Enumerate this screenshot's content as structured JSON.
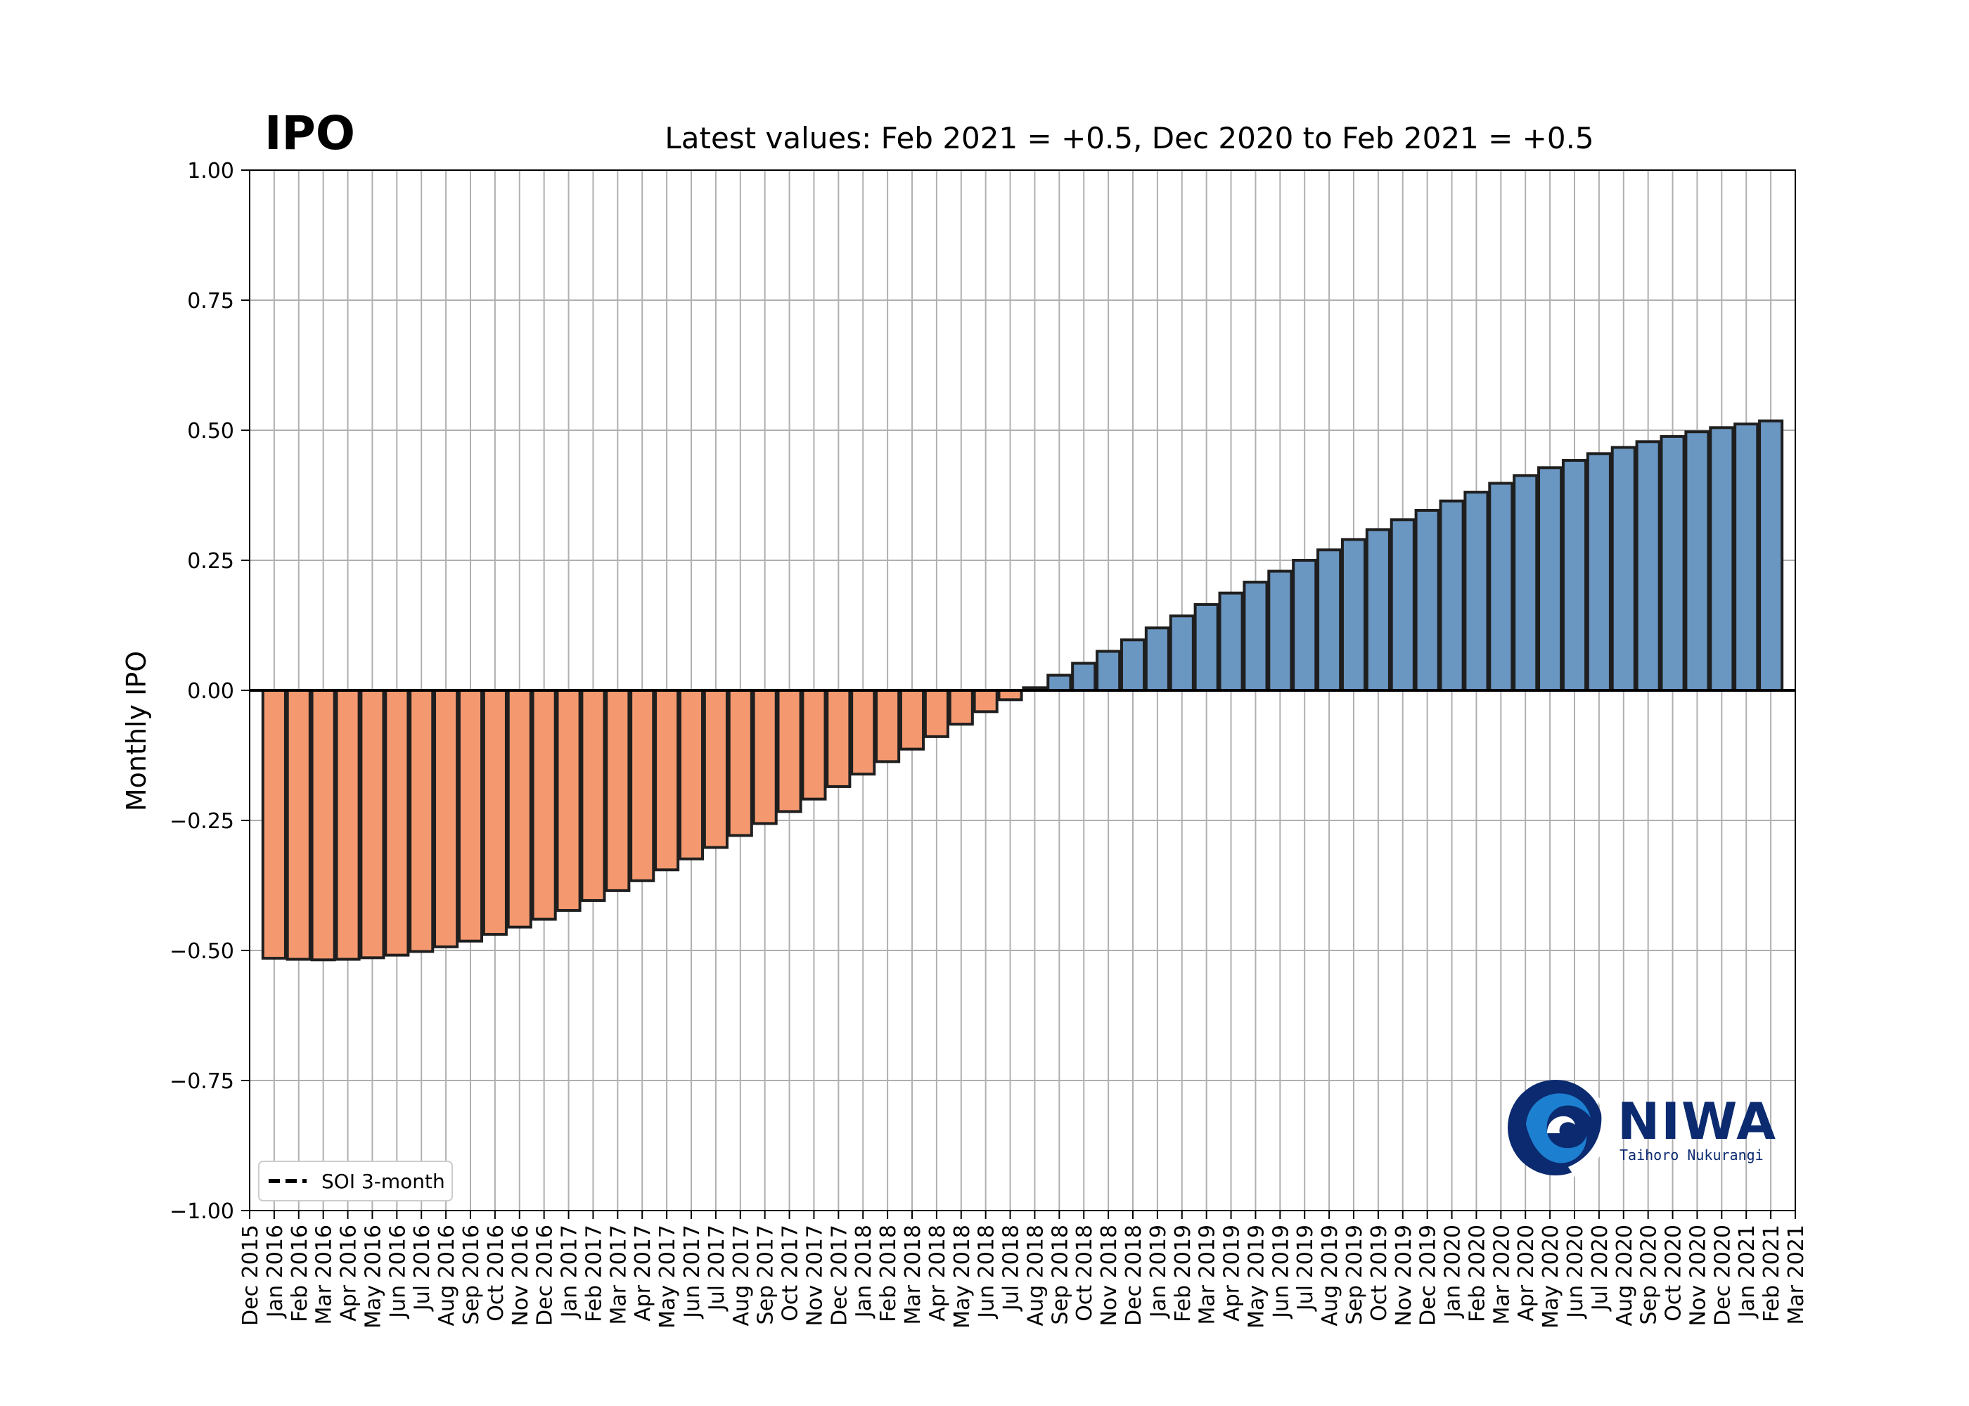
{
  "chart_data": {
    "type": "bar",
    "title": "IPO",
    "subtitle": "Latest values: Feb 2021 = +0.5, Dec 2020 to Feb 2021 = +0.5",
    "xlabel": "",
    "ylabel": "Monthly IPO",
    "ylim": [
      -1.0,
      1.0
    ],
    "yticks": [
      "1.00",
      "0.75",
      "0.50",
      "0.25",
      "0.00",
      "−0.25",
      "−0.50",
      "−0.75",
      "−1.00"
    ],
    "ytick_values": [
      1.0,
      0.75,
      0.5,
      0.25,
      0.0,
      -0.25,
      -0.5,
      -0.75,
      -1.0
    ],
    "grid": true,
    "x_tick_labels": [
      "Dec 2015",
      "Jan 2016",
      "Feb 2016",
      "Mar 2016",
      "Apr 2016",
      "May 2016",
      "Jun 2016",
      "Jul 2016",
      "Aug 2016",
      "Sep 2016",
      "Oct 2016",
      "Nov 2016",
      "Dec 2016",
      "Jan 2017",
      "Feb 2017",
      "Mar 2017",
      "Apr 2017",
      "May 2017",
      "Jun 2017",
      "Jul 2017",
      "Aug 2017",
      "Sep 2017",
      "Oct 2017",
      "Nov 2017",
      "Dec 2017",
      "Jan 2018",
      "Feb 2018",
      "Mar 2018",
      "Apr 2018",
      "May 2018",
      "Jun 2018",
      "Jul 2018",
      "Aug 2018",
      "Sep 2018",
      "Oct 2018",
      "Nov 2018",
      "Dec 2018",
      "Jan 2019",
      "Feb 2019",
      "Mar 2019",
      "Apr 2019",
      "May 2019",
      "Jun 2019",
      "Jul 2019",
      "Aug 2019",
      "Sep 2019",
      "Oct 2019",
      "Nov 2019",
      "Dec 2019",
      "Jan 2020",
      "Feb 2020",
      "Mar 2020",
      "Apr 2020",
      "May 2020",
      "Jun 2020",
      "Jul 2020",
      "Aug 2020",
      "Sep 2020",
      "Oct 2020",
      "Nov 2020",
      "Dec 2020",
      "Jan 2021",
      "Feb 2021",
      "Mar 2021"
    ],
    "categories": [
      "Jan 2016",
      "Feb 2016",
      "Mar 2016",
      "Apr 2016",
      "May 2016",
      "Jun 2016",
      "Jul 2016",
      "Aug 2016",
      "Sep 2016",
      "Oct 2016",
      "Nov 2016",
      "Dec 2016",
      "Jan 2017",
      "Feb 2017",
      "Mar 2017",
      "Apr 2017",
      "May 2017",
      "Jun 2017",
      "Jul 2017",
      "Aug 2017",
      "Sep 2017",
      "Oct 2017",
      "Nov 2017",
      "Dec 2017",
      "Jan 2018",
      "Feb 2018",
      "Mar 2018",
      "Apr 2018",
      "May 2018",
      "Jun 2018",
      "Jul 2018",
      "Aug 2018",
      "Sep 2018",
      "Oct 2018",
      "Nov 2018",
      "Dec 2018",
      "Jan 2019",
      "Feb 2019",
      "Mar 2019",
      "Apr 2019",
      "May 2019",
      "Jun 2019",
      "Jul 2019",
      "Aug 2019",
      "Sep 2019",
      "Oct 2019",
      "Nov 2019",
      "Dec 2019",
      "Jan 2020",
      "Feb 2020",
      "Mar 2020",
      "Apr 2020",
      "May 2020",
      "Jun 2020",
      "Jul 2020",
      "Aug 2020",
      "Sep 2020",
      "Oct 2020",
      "Nov 2020",
      "Dec 2020",
      "Jan 2021",
      "Feb 2021"
    ],
    "values": [
      -0.515,
      -0.517,
      -0.518,
      -0.517,
      -0.514,
      -0.509,
      -0.502,
      -0.493,
      -0.482,
      -0.469,
      -0.455,
      -0.44,
      -0.423,
      -0.404,
      -0.385,
      -0.366,
      -0.345,
      -0.324,
      -0.302,
      -0.279,
      -0.256,
      -0.233,
      -0.209,
      -0.185,
      -0.161,
      -0.137,
      -0.113,
      -0.089,
      -0.065,
      -0.041,
      -0.018,
      0.005,
      0.029,
      0.052,
      0.075,
      0.097,
      0.12,
      0.143,
      0.165,
      0.187,
      0.208,
      0.229,
      0.25,
      0.27,
      0.29,
      0.309,
      0.328,
      0.346,
      0.364,
      0.381,
      0.398,
      0.413,
      0.428,
      0.442,
      0.455,
      0.467,
      0.478,
      0.488,
      0.497,
      0.505,
      0.512,
      0.518
    ],
    "legend": {
      "placement": "lower-left",
      "entries": [
        "SOI 3-month"
      ]
    },
    "colors": {
      "negative": "#f4996f",
      "positive": "#6a96c2",
      "edge": "#1f1f1f",
      "grid": "#b0b0b0"
    }
  },
  "logo": {
    "name": "NIWA",
    "tagline": "Taihoro Nukurangi",
    "color": "#0b2a6f"
  }
}
